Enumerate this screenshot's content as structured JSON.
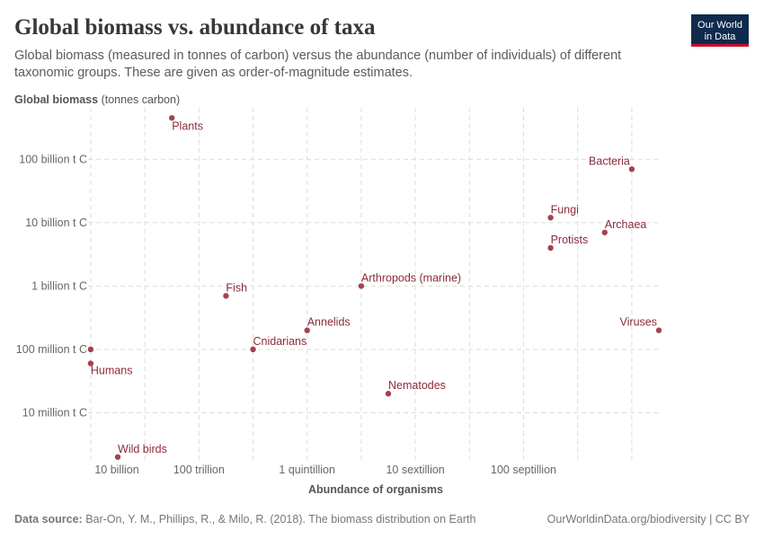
{
  "chart_data": {
    "type": "scatter",
    "title": "Global biomass vs. abundance of taxa",
    "subtitle": [
      "Global biomass (measured in tonnes of carbon) versus the abundance (number of individuals) of different",
      "taxonomic groups. These are given as order-of-magnitude estimates."
    ],
    "y_label": "Global biomass",
    "y_unit": "(tonnes carbon)",
    "x_label": "Abundance of organisms",
    "log_x": true,
    "log_y": true,
    "grid": true,
    "color": "#a2434f",
    "categories": [
      "Plants",
      "Bacteria",
      "Fungi",
      "Archaea",
      "Protists",
      "Arthropods (marine)",
      "Fish",
      "Annelids",
      "Viruses",
      null,
      "Cnidarians",
      "Humans",
      "Nematodes",
      "Wild birds"
    ],
    "x": [
      10000000000000.0,
      1e+30,
      1e+27,
      1e+29,
      1e+27,
      1e+20,
      1000000000000000.0,
      1e+18,
      1e+31,
      10000000000.0,
      1e+16,
      10000000000.0,
      1e+21,
      100000000000.0
    ],
    "values": [
      450000000000.0,
      70000000000.0,
      12000000000.0,
      7000000000.0,
      4000000000.0,
      1000000000.0,
      700000000.0,
      200000000.0,
      200000000.0,
      100000000.0,
      100000000.0,
      60000000.0,
      20000000.0,
      2000000.0
    ],
    "xlim": [
      8000000000.0,
      1e+31
    ],
    "ylim": [
      1800000.0,
      650000000000.0
    ],
    "xticks": [
      {
        "value": 10000000000.0,
        "label": "10 billion"
      },
      {
        "value": 1000000000000.0,
        "label": null
      },
      {
        "value": 100000000000000.0,
        "label": "100 trillion"
      },
      {
        "value": 1e+16,
        "label": null
      },
      {
        "value": 1e+18,
        "label": "1 quintillion"
      },
      {
        "value": 1e+20,
        "label": null
      },
      {
        "value": 1e+22,
        "label": "10 sextillion"
      },
      {
        "value": 1e+24,
        "label": null
      },
      {
        "value": 1e+26,
        "label": "100 septillion"
      },
      {
        "value": 1e+28,
        "label": null
      },
      {
        "value": 1e+30,
        "label": null
      }
    ],
    "yticks": [
      {
        "value": 10000000.0,
        "label": "10 million t C"
      },
      {
        "value": 100000000.0,
        "label": "100 million t C"
      },
      {
        "value": 1000000000.0,
        "label": "1 billion t C"
      },
      {
        "value": 10000000000.0,
        "label": "10 billion t C"
      },
      {
        "value": 100000000000.0,
        "label": "100 billion t C"
      }
    ]
  },
  "logo": [
    "Our World",
    "in Data"
  ],
  "footer": {
    "source_label": "Data source:",
    "source": "Bar-On, Y. M., Phillips, R., & Milo, R. (2018). The biomass distribution on Earth",
    "url": "OurWorldinData.org/biodiversity | CC BY"
  }
}
